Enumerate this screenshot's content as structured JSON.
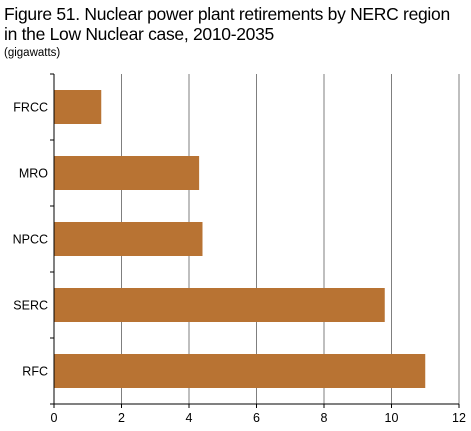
{
  "title": "Figure 51. Nuclear power plant retirements by NERC region in the Low Nuclear case, 2010-2035",
  "units": "(gigawatts)",
  "colors": {
    "bar": "#b87333",
    "grid": "#7f7f7f",
    "axis": "#000000"
  },
  "chart_data": {
    "type": "bar",
    "orientation": "horizontal",
    "categories": [
      "FRCC",
      "MRO",
      "NPCC",
      "SERC",
      "RFC"
    ],
    "values": [
      1.4,
      4.3,
      4.4,
      9.8,
      11.0
    ],
    "xlim": [
      0,
      12
    ],
    "xticks": [
      "0",
      "2",
      "4",
      "6",
      "8",
      "10",
      "12"
    ],
    "grid": "vertical",
    "legend": "none"
  }
}
